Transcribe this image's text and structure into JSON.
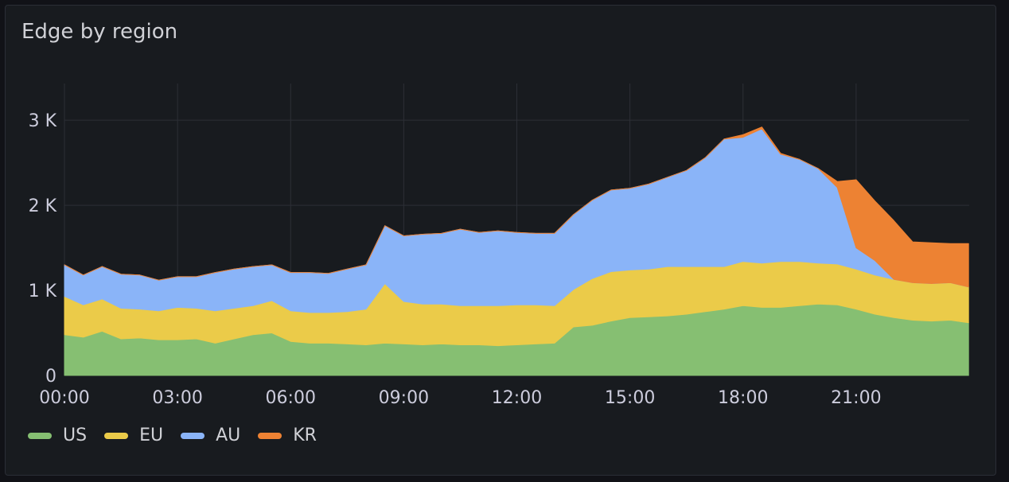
{
  "panel": {
    "title": "Edge by region"
  },
  "colors": {
    "background": "#181b1f",
    "grid": "#2c2f36",
    "tick_text": "#ccccdc"
  },
  "chart_data": {
    "type": "area",
    "stacked": true,
    "title": "Edge by region",
    "x_ticks": [
      "00:00",
      "03:00",
      "06:00",
      "09:00",
      "12:00",
      "15:00",
      "18:00",
      "21:00"
    ],
    "y_ticks": [
      "0",
      "1 K",
      "2 K",
      "3 K"
    ],
    "ylim": [
      0,
      3600
    ],
    "legend_position": "bottom-left",
    "grid": true,
    "x": [
      "00:00",
      "00:30",
      "01:00",
      "01:30",
      "02:00",
      "02:30",
      "03:00",
      "03:30",
      "04:00",
      "04:30",
      "05:00",
      "05:30",
      "06:00",
      "06:30",
      "07:00",
      "07:30",
      "08:00",
      "08:30",
      "09:00",
      "09:30",
      "10:00",
      "10:30",
      "11:00",
      "11:30",
      "12:00",
      "12:30",
      "13:00",
      "13:30",
      "14:00",
      "14:30",
      "15:00",
      "15:30",
      "16:00",
      "16:30",
      "17:00",
      "17:30",
      "18:00",
      "18:30",
      "19:00",
      "19:30",
      "20:00",
      "20:30",
      "21:00",
      "21:30",
      "22:00",
      "22:30",
      "23:00",
      "23:30",
      "23:59"
    ],
    "series": [
      {
        "name": "US",
        "color": "#86bf72",
        "values": [
          480,
          450,
          520,
          430,
          440,
          420,
          420,
          430,
          380,
          430,
          480,
          500,
          400,
          380,
          380,
          370,
          360,
          380,
          370,
          360,
          370,
          360,
          360,
          350,
          360,
          370,
          380,
          570,
          590,
          640,
          680,
          690,
          700,
          720,
          750,
          780,
          820,
          800,
          800,
          820,
          840,
          830,
          780,
          720,
          680,
          650,
          640,
          650,
          620
        ]
      },
      {
        "name": "EU",
        "color": "#ebcb49",
        "values": [
          450,
          380,
          380,
          360,
          340,
          340,
          380,
          360,
          380,
          360,
          340,
          380,
          360,
          360,
          360,
          380,
          420,
          700,
          500,
          480,
          470,
          460,
          460,
          470,
          470,
          460,
          440,
          440,
          550,
          580,
          560,
          560,
          580,
          560,
          530,
          500,
          520,
          520,
          540,
          520,
          480,
          480,
          470,
          460,
          450,
          440,
          440,
          440,
          420
        ]
      },
      {
        "name": "AU",
        "color": "#8ab4f8",
        "values": [
          370,
          350,
          380,
          400,
          400,
          360,
          360,
          370,
          450,
          460,
          460,
          420,
          450,
          470,
          460,
          500,
          520,
          680,
          770,
          820,
          830,
          900,
          860,
          880,
          850,
          840,
          850,
          880,
          920,
          960,
          960,
          1000,
          1050,
          1130,
          1280,
          1500,
          1460,
          1580,
          1260,
          1200,
          1110,
          900,
          250,
          170,
          0,
          0,
          0,
          0,
          0
        ]
      },
      {
        "name": "KR",
        "color": "#ed8233",
        "values": [
          0,
          0,
          0,
          0,
          0,
          0,
          0,
          0,
          0,
          0,
          0,
          0,
          0,
          0,
          0,
          0,
          0,
          0,
          0,
          0,
          0,
          0,
          0,
          0,
          0,
          0,
          0,
          0,
          0,
          0,
          0,
          0,
          0,
          0,
          0,
          0,
          30,
          20,
          10,
          0,
          0,
          70,
          800,
          700,
          690,
          480,
          480,
          460,
          510
        ]
      }
    ]
  }
}
